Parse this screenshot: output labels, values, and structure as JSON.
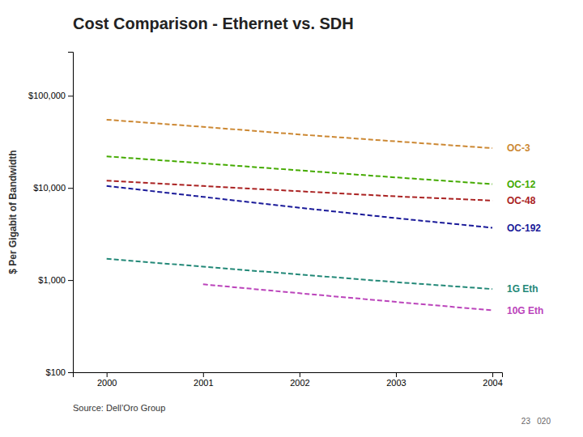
{
  "chart_data": {
    "type": "line",
    "title": "Cost Comparison - Ethernet vs. SDH",
    "ylabel": "$ Per Gigabit of Bandwidth",
    "source": "Source: Dell’Oro Group",
    "annotations": [
      "23   020"
    ],
    "x": [
      2000,
      2001,
      2002,
      2003,
      2004
    ],
    "xlim": [
      1999.65,
      2004.1
    ],
    "xticks": [
      2000,
      2001,
      2002,
      2003,
      2004
    ],
    "log": "y",
    "ylim": [
      100,
      300000
    ],
    "yticks": [
      {
        "value": 100,
        "label": "$100"
      },
      {
        "value": 1000,
        "label": "$1,000"
      },
      {
        "value": 10000,
        "label": "$10,000"
      },
      {
        "value": 100000,
        "label": "$100,000"
      }
    ],
    "grid": false,
    "series": [
      {
        "name": "OC-3",
        "color": "#CC8833",
        "line_style": "dashed",
        "values": [
          55000,
          46000,
          38000,
          32000,
          27000
        ]
      },
      {
        "name": "OC-12",
        "color": "#44AA00",
        "line_style": "dashed",
        "values": [
          22000,
          18500,
          15500,
          13000,
          11000
        ]
      },
      {
        "name": "OC-48",
        "color": "#AA2222",
        "line_style": "dashed",
        "values": [
          12000,
          10500,
          9200,
          8100,
          7300
        ]
      },
      {
        "name": "OC-192",
        "color": "#1A1A99",
        "line_style": "dashed",
        "values": [
          10500,
          8000,
          6100,
          4700,
          3700
        ]
      },
      {
        "name": "1G Eth",
        "color": "#228877",
        "line_style": "dashed",
        "values": [
          1700,
          1400,
          1150,
          950,
          800
        ]
      },
      {
        "name": "10G Eth",
        "color": "#BB44BB",
        "line_style": "dashed",
        "values": [
          null,
          900,
          720,
          580,
          470
        ]
      }
    ]
  }
}
